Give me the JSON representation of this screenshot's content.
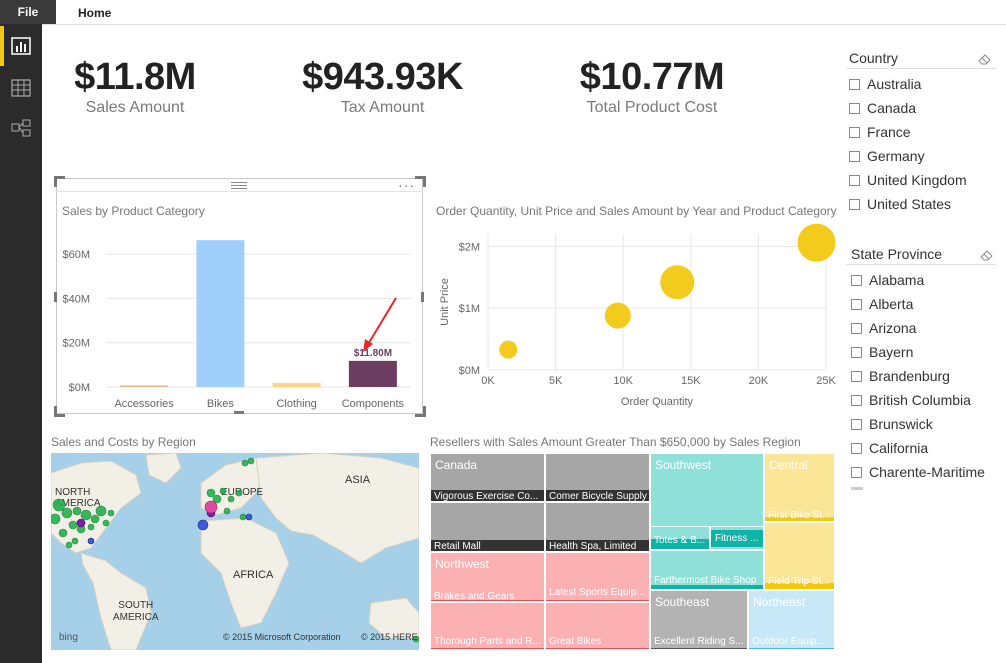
{
  "ribbon": {
    "file_label": "File",
    "home_label": "Home"
  },
  "nav": {
    "icons": [
      "report-view-icon",
      "data-view-icon",
      "relationships-view-icon"
    ]
  },
  "cards": [
    {
      "value": "$11.8M",
      "label": "Sales Amount"
    },
    {
      "value": "$943.93K",
      "label": "Tax Amount"
    },
    {
      "value": "$10.77M",
      "label": "Total Product Cost"
    }
  ],
  "bar_chart": {
    "title": "Sales by Product Category",
    "data_label": "$11.80M"
  },
  "scatter_chart": {
    "title": "Order Quantity, Unit Price and Sales Amount by Year and Product Category"
  },
  "map_visual": {
    "title": "Sales and Costs by Region",
    "labels": {
      "north_america": "NORTH\nAMERICA",
      "europe": "EUROPE",
      "asia": "ASIA",
      "africa": "AFRICA",
      "south_america": "SOUTH\nAMERICA"
    },
    "bing": "bing",
    "copyright": "© 2015 Microsoft Corporation",
    "copyright2": "© 2015 HERE"
  },
  "treemap": {
    "title": "Resellers with Sales Amount Greater Than $650,000 by Sales Region",
    "groups": {
      "canada": "Canada",
      "northwest": "Northwest",
      "southwest": "Southwest",
      "central": "Central",
      "southeast": "Southeast",
      "northeast": "Northeast"
    },
    "items": {
      "c1": "Vigorous Exercise Co...",
      "c2": "Comer Bicycle Supply",
      "c3": "Retail Mall",
      "c4": "Health Spa, Limited",
      "n1": "Brakes and Gears",
      "n2": "Latest Sports Equip...",
      "n3": "Thorough Parts and R...",
      "n4": "Great Bikes",
      "s1": "Totes & B...",
      "s2": "Fitness ...",
      "s3": "Farthermost Bike Shop",
      "ce1": "First Bike St...",
      "ce2": "Field Trip St...",
      "se1": "Excellent Riding S...",
      "ne1": "Outdoor Equip..."
    }
  },
  "slicer_country": {
    "title": "Country",
    "items": [
      "Australia",
      "Canada",
      "France",
      "Germany",
      "United Kingdom",
      "United States"
    ]
  },
  "slicer_state": {
    "title": "State Province",
    "items": [
      "Alabama",
      "Alberta",
      "Arizona",
      "Bayern",
      "Brandenburg",
      "British Columbia",
      "Brunswick",
      "California",
      "Charente-Maritime"
    ]
  },
  "chart_data": [
    {
      "type": "bar",
      "title": "Sales by Product Category",
      "categories": [
        "Accessories",
        "Bikes",
        "Clothing",
        "Components"
      ],
      "values": [
        0.7,
        66.3,
        1.8,
        11.8
      ],
      "unit": "$M",
      "data_labels": [
        "",
        "",
        "",
        "$11.80M"
      ],
      "ylim": [
        0,
        70
      ],
      "yticks": [
        "$0M",
        "$20M",
        "$40M",
        "$60M"
      ],
      "ytick_values": [
        0,
        20,
        40,
        60
      ],
      "colors": [
        "#e8b88a",
        "#a0cffb",
        "#fbd38a",
        "#6b3d60"
      ],
      "grid": true
    },
    {
      "type": "scatter",
      "title": "Order Quantity, Unit Price and Sales Amount by Year and Product Category",
      "xlabel": "Order Quantity",
      "ylabel": "Unit Price",
      "xlim": [
        0,
        25000
      ],
      "ylim": [
        0,
        2200000
      ],
      "xticks": [
        "0K",
        "5K",
        "10K",
        "15K",
        "20K",
        "25K"
      ],
      "xtick_values": [
        0,
        5000,
        10000,
        15000,
        20000,
        25000
      ],
      "yticks": [
        "$0M",
        "$1M",
        "$2M"
      ],
      "ytick_values": [
        0,
        1000000,
        2000000
      ],
      "points": [
        {
          "x": 1500,
          "y": 330000,
          "size": 9
        },
        {
          "x": 9600,
          "y": 880000,
          "size": 13
        },
        {
          "x": 14000,
          "y": 1420000,
          "size": 17
        },
        {
          "x": 24300,
          "y": 2060000,
          "size": 19
        }
      ],
      "color": "#f2c811",
      "grid": true
    }
  ]
}
